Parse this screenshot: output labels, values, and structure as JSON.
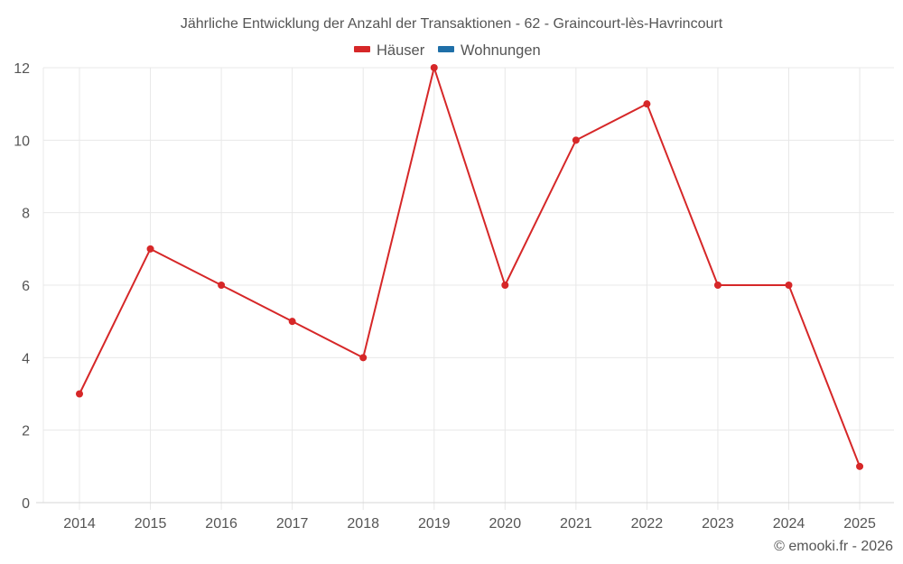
{
  "chart_data": {
    "type": "line",
    "title": "Jährliche Entwicklung der Anzahl der Transaktionen - 62 - Graincourt-lès-Havrincourt",
    "xlabel": "",
    "ylabel": "",
    "categories": [
      "2014",
      "2015",
      "2016",
      "2017",
      "2018",
      "2019",
      "2020",
      "2021",
      "2022",
      "2023",
      "2024",
      "2025"
    ],
    "series": [
      {
        "name": "Häuser",
        "color": "#d62728",
        "values": [
          3,
          7,
          6,
          5,
          4,
          12,
          6,
          10,
          11,
          6,
          6,
          1
        ]
      },
      {
        "name": "Wohnungen",
        "color": "#1f6fa8",
        "values": []
      }
    ],
    "ylim": [
      0,
      12
    ],
    "yticks": [
      "0",
      "2",
      "4",
      "6",
      "8",
      "10",
      "12"
    ],
    "grid": true,
    "legend_position": "top"
  },
  "legend": {
    "items": [
      {
        "label": "Häuser",
        "color": "#d62728"
      },
      {
        "label": "Wohnungen",
        "color": "#1f6fa8"
      }
    ]
  },
  "credit": "© emooki.fr - 2026"
}
